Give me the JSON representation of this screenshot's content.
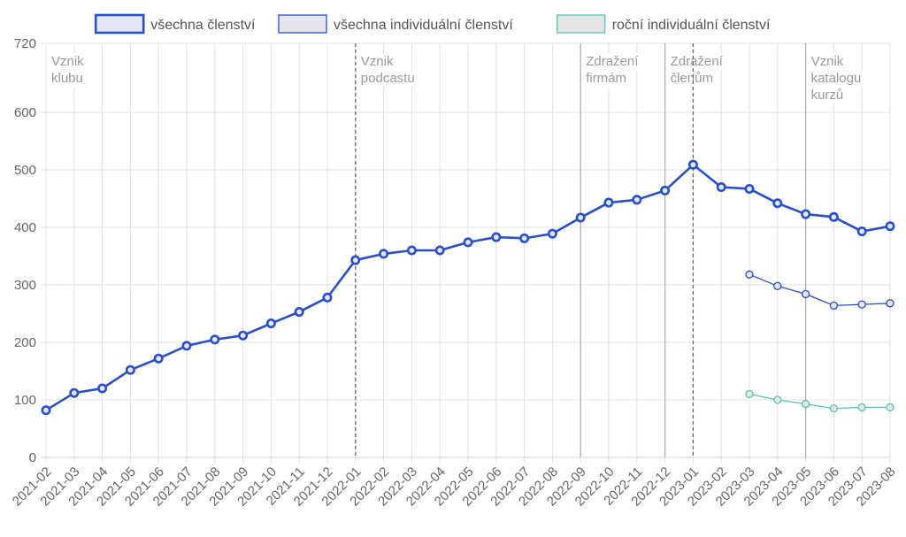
{
  "chart_data": {
    "type": "line",
    "categories": [
      "2021-02",
      "2021-03",
      "2021-04",
      "2021-05",
      "2021-06",
      "2021-07",
      "2021-08",
      "2021-09",
      "2021-10",
      "2021-11",
      "2021-12",
      "2022-01",
      "2022-02",
      "2022-03",
      "2022-04",
      "2022-05",
      "2022-06",
      "2022-07",
      "2022-08",
      "2022-09",
      "2022-10",
      "2022-11",
      "2022-12",
      "2023-01",
      "2023-02",
      "2023-03",
      "2023-04",
      "2023-05",
      "2023-06",
      "2023-07",
      "2023-08"
    ],
    "ylim": [
      0,
      720
    ],
    "yticks": [
      0,
      100,
      200,
      300,
      400,
      500,
      600,
      720
    ],
    "grid": true,
    "legend_position": "top",
    "series": [
      {
        "name": "všechna členství",
        "color": "#2a4fc9",
        "fill": "#e4e8f6",
        "values": [
          82,
          112,
          120,
          152,
          172,
          194,
          205,
          212,
          233,
          253,
          278,
          343,
          354,
          360,
          360,
          374,
          383,
          381,
          389,
          417,
          443,
          448,
          464,
          509,
          470,
          467,
          442,
          423,
          418,
          393,
          402
        ]
      },
      {
        "name": "všechna individuální členství",
        "color": "#2a4fc9",
        "fill": "#e6e6ee",
        "values": [
          null,
          null,
          null,
          null,
          null,
          null,
          null,
          null,
          null,
          null,
          null,
          null,
          null,
          null,
          null,
          null,
          null,
          null,
          null,
          null,
          null,
          null,
          null,
          null,
          null,
          318,
          298,
          284,
          264,
          266,
          268
        ]
      },
      {
        "name": "roční individuální členství",
        "color": "#5cc4b0",
        "fill": "#e4e4e4",
        "values": [
          null,
          null,
          null,
          null,
          null,
          null,
          null,
          null,
          null,
          null,
          null,
          null,
          null,
          null,
          null,
          null,
          null,
          null,
          null,
          null,
          null,
          null,
          null,
          null,
          null,
          110,
          100,
          93,
          85,
          87,
          87
        ]
      }
    ],
    "annotations": [
      {
        "at": "2021-02",
        "lines": [
          "Vznik",
          "klubu"
        ],
        "style": "none"
      },
      {
        "at": "2022-01",
        "lines": [
          "Vznik",
          "podcastu"
        ],
        "style": "dashed"
      },
      {
        "at": "2022-09",
        "lines": [
          "Zdražení",
          "firmám"
        ],
        "style": "solid"
      },
      {
        "at": "2022-12",
        "lines": [
          "Zdražení",
          "členům"
        ],
        "style": "solid"
      },
      {
        "at": "2023-01",
        "lines": [],
        "style": "dashed"
      },
      {
        "at": "2023-05",
        "lines": [
          "Vznik",
          "katalogu",
          "kurzů"
        ],
        "style": "solid"
      }
    ]
  }
}
